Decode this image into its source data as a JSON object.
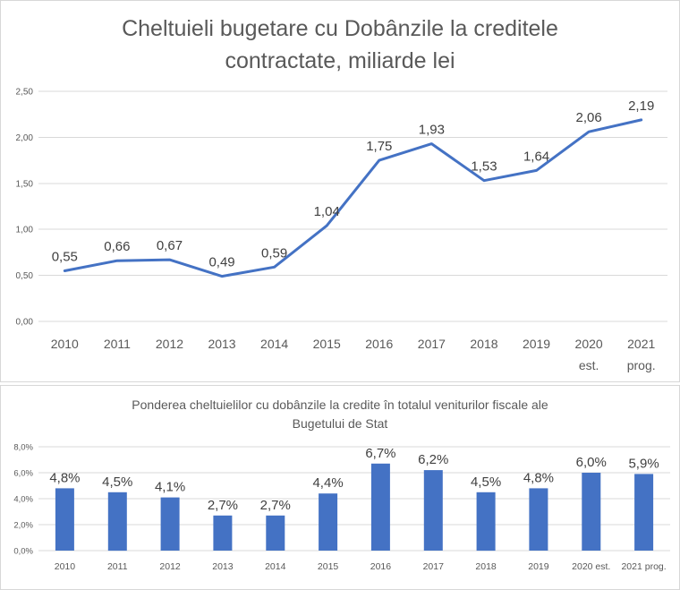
{
  "colors": {
    "accent_blue": "#4472C4",
    "gridline": "#d9d9d9",
    "axis_text": "#595959",
    "data_label_text": "#404040",
    "title_text": "#595959",
    "panel_border": "#d7d7d7"
  },
  "chart_data": [
    {
      "type": "line",
      "title": "Cheltuieli bugetare cu Dobânzile la creditele contractate, miliarde lei",
      "title_lines": [
        "Cheltuieli bugetare cu Dobânzile la creditele",
        "contractate, miliarde lei"
      ],
      "categories": [
        "2010",
        "2011",
        "2012",
        "2013",
        "2014",
        "2015",
        "2016",
        "2017",
        "2018",
        "2019",
        "2020 est.",
        "2021 prog."
      ],
      "values": [
        0.55,
        0.66,
        0.67,
        0.49,
        0.59,
        1.04,
        1.75,
        1.93,
        1.53,
        1.64,
        2.06,
        2.19
      ],
      "data_labels": [
        "0,55",
        "0,66",
        "0,67",
        "0,49",
        "0,59",
        "1,04",
        "1,75",
        "1,93",
        "1,53",
        "1,64",
        "2,06",
        "2,19"
      ],
      "xlabel": "",
      "ylabel": "",
      "ylim": [
        0,
        2.5
      ],
      "ytick_step": 0.5,
      "ytick_labels": [
        "0,00",
        "0,50",
        "1,00",
        "1,50",
        "2,00",
        "2,50"
      ],
      "grid": true,
      "legend": "none",
      "two_line_x_labels": true
    },
    {
      "type": "bar",
      "title": "Ponderea cheltuielilor cu dobânzile la credite în totalul veniturilor fiscale ale Bugetului de Stat",
      "title_lines": [
        "Ponderea cheltuielilor cu dobânzile la credite în totalul veniturilor fiscale ale",
        "Bugetului de Stat"
      ],
      "categories": [
        "2010",
        "2011",
        "2012",
        "2013",
        "2014",
        "2015",
        "2016",
        "2017",
        "2018",
        "2019",
        "2020 est.",
        "2021 prog."
      ],
      "values": [
        4.8,
        4.5,
        4.1,
        2.7,
        2.7,
        4.4,
        6.7,
        6.2,
        4.5,
        4.8,
        6.0,
        5.9
      ],
      "data_labels": [
        "4,8%",
        "4,5%",
        "4,1%",
        "2,7%",
        "2,7%",
        "4,4%",
        "6,7%",
        "6,2%",
        "4,5%",
        "4,8%",
        "6,0%",
        "5,9%"
      ],
      "xlabel": "",
      "ylabel": "",
      "ylim": [
        0,
        8
      ],
      "ytick_step": 2,
      "ytick_labels": [
        "0,0%",
        "2,0%",
        "4,0%",
        "6,0%",
        "8,0%"
      ],
      "grid": true,
      "legend": "none",
      "two_line_x_labels": false
    }
  ]
}
